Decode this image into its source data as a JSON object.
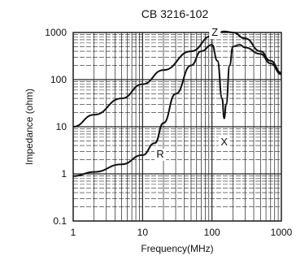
{
  "chart_data": {
    "type": "line",
    "title": "CB 3216-102",
    "xlabel": "Frequency(MHz)",
    "ylabel": "Impedance (ohm)",
    "xscale": "log",
    "yscale": "log",
    "xlim": [
      1,
      1000
    ],
    "ylim": [
      0.1,
      1000
    ],
    "x_ticks": [
      "1",
      "10",
      "100",
      "1000"
    ],
    "y_ticks": [
      "0.1",
      "1",
      "10",
      "100",
      "1000"
    ],
    "grid": true,
    "series": [
      {
        "name": "Z",
        "color": "#111111",
        "x": [
          1,
          2,
          5,
          10,
          20,
          50,
          100,
          150,
          200,
          300,
          500,
          700,
          1000
        ],
        "y": [
          10,
          18,
          40,
          80,
          160,
          400,
          850,
          1050,
          1000,
          750,
          400,
          250,
          140
        ]
      },
      {
        "name": "R",
        "color": "#111111",
        "x": [
          1,
          2,
          5,
          10,
          15,
          20,
          30,
          50,
          70,
          100,
          120,
          140,
          150,
          160,
          180,
          200,
          250,
          300,
          500,
          700,
          1000
        ],
        "y": [
          0.9,
          1.1,
          1.6,
          2.5,
          4.5,
          12,
          50,
          200,
          400,
          550,
          250,
          40,
          15,
          30,
          200,
          500,
          550,
          480,
          350,
          220,
          130
        ]
      }
    ],
    "annotations": [
      {
        "text": "Z",
        "x": 110,
        "y": 850
      },
      {
        "text": "R",
        "x": 18,
        "y": 2.2
      },
      {
        "text": "X",
        "x": 150,
        "y": 4
      }
    ]
  }
}
